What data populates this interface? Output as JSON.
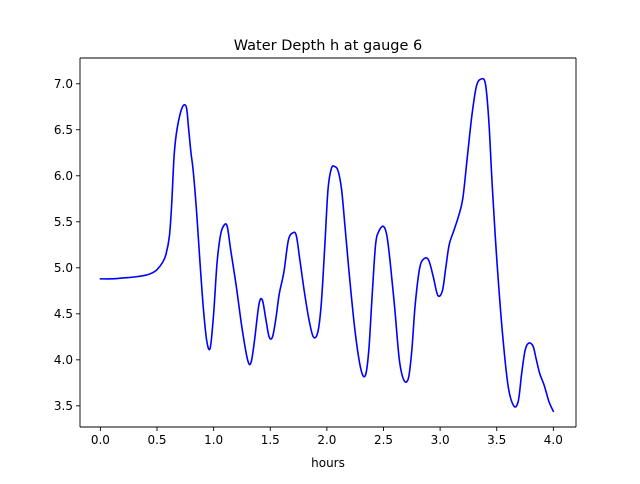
{
  "chart_data": {
    "type": "line",
    "title": "Water Depth h at gauge 6",
    "xlabel": "hours",
    "ylabel": "",
    "xlim": [
      -0.18,
      4.2
    ],
    "ylim": [
      3.27,
      7.28
    ],
    "xticks": [
      0.0,
      0.5,
      1.0,
      1.5,
      2.0,
      2.5,
      3.0,
      3.5,
      4.0
    ],
    "xtick_labels": [
      "0.0",
      "0.5",
      "1.0",
      "1.5",
      "2.0",
      "2.5",
      "3.0",
      "3.5",
      "4.0"
    ],
    "yticks": [
      3.5,
      4.0,
      4.5,
      5.0,
      5.5,
      6.0,
      6.5,
      7.0
    ],
    "ytick_labels": [
      "3.5",
      "4.0",
      "4.5",
      "5.0",
      "5.5",
      "6.0",
      "6.5",
      "7.0"
    ],
    "grid": false,
    "series": [
      {
        "color": "#0000ff",
        "x": [
          0.0,
          0.1,
          0.2,
          0.3,
          0.4,
          0.45,
          0.5,
          0.55,
          0.58,
          0.61,
          0.63,
          0.65,
          0.67,
          0.7,
          0.73,
          0.76,
          0.78,
          0.8,
          0.82,
          0.85,
          0.88,
          0.91,
          0.94,
          0.97,
          1.0,
          1.03,
          1.06,
          1.09,
          1.12,
          1.15,
          1.2,
          1.25,
          1.3,
          1.33,
          1.36,
          1.4,
          1.43,
          1.46,
          1.49,
          1.52,
          1.55,
          1.58,
          1.62,
          1.66,
          1.7,
          1.73,
          1.76,
          1.8,
          1.84,
          1.88,
          1.92,
          1.95,
          1.98,
          2.01,
          2.04,
          2.07,
          2.1,
          2.13,
          2.16,
          2.2,
          2.25,
          2.3,
          2.34,
          2.37,
          2.4,
          2.43,
          2.46,
          2.5,
          2.53,
          2.56,
          2.6,
          2.64,
          2.68,
          2.72,
          2.75,
          2.78,
          2.82,
          2.86,
          2.9,
          2.94,
          2.98,
          3.02,
          3.05,
          3.08,
          3.12,
          3.16,
          3.2,
          3.24,
          3.28,
          3.32,
          3.36,
          3.4,
          3.43,
          3.46,
          3.5,
          3.55,
          3.6,
          3.65,
          3.69,
          3.72,
          3.75,
          3.78,
          3.82,
          3.85,
          3.88,
          3.92,
          3.96,
          4.0
        ],
        "y": [
          4.88,
          4.88,
          4.89,
          4.9,
          4.92,
          4.94,
          4.98,
          5.06,
          5.15,
          5.35,
          5.7,
          6.2,
          6.45,
          6.65,
          6.76,
          6.74,
          6.5,
          6.25,
          6.05,
          5.6,
          5.05,
          4.55,
          4.2,
          4.13,
          4.5,
          5.05,
          5.35,
          5.46,
          5.45,
          5.2,
          4.8,
          4.35,
          4.0,
          3.97,
          4.2,
          4.6,
          4.65,
          4.45,
          4.25,
          4.25,
          4.45,
          4.72,
          4.95,
          5.3,
          5.38,
          5.35,
          5.1,
          4.75,
          4.45,
          4.25,
          4.3,
          4.6,
          5.2,
          5.85,
          6.08,
          6.1,
          6.05,
          5.85,
          5.45,
          4.9,
          4.3,
          3.9,
          3.83,
          4.1,
          4.7,
          5.25,
          5.4,
          5.45,
          5.35,
          5.05,
          4.55,
          4.0,
          3.78,
          3.8,
          4.1,
          4.6,
          5.0,
          5.1,
          5.08,
          4.9,
          4.7,
          4.75,
          5.0,
          5.25,
          5.4,
          5.55,
          5.75,
          6.2,
          6.65,
          6.97,
          7.05,
          7.0,
          6.6,
          5.9,
          5.1,
          4.3,
          3.72,
          3.5,
          3.55,
          3.85,
          4.1,
          4.18,
          4.15,
          4.0,
          3.85,
          3.72,
          3.55,
          3.44
        ]
      }
    ]
  }
}
